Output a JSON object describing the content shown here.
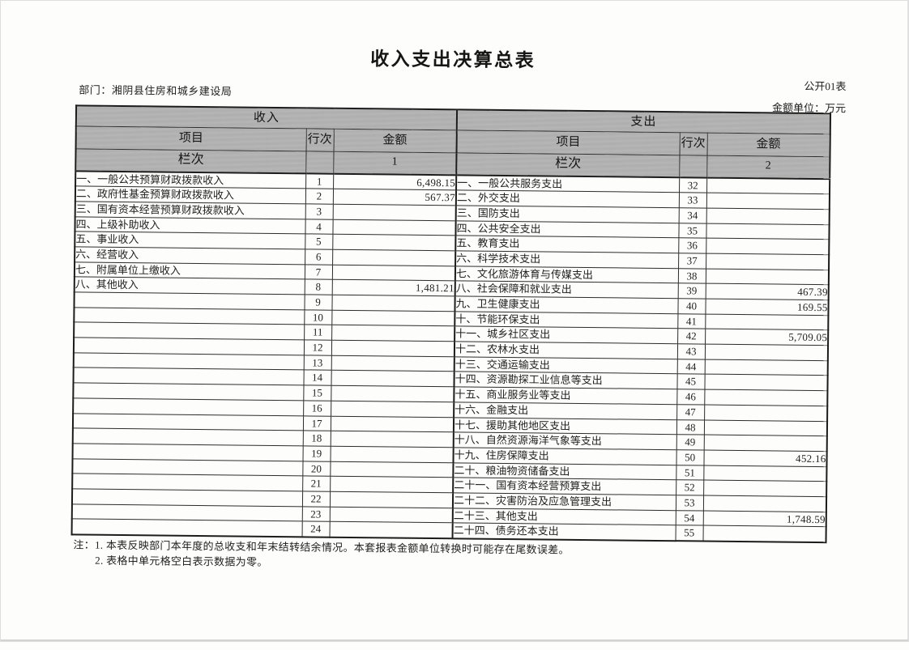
{
  "page": {
    "title": "收入支出决算总表",
    "department_label": "部门：湘阴县住房和城乡建设局",
    "form_code": "公开01表",
    "unit_label": "金额单位：万元"
  },
  "table": {
    "section_headers": {
      "income": "收入",
      "expenditure": "支出"
    },
    "column_headers": {
      "item": "项目",
      "row_no": "行次",
      "amount": "金额",
      "column_label": "栏次",
      "income_col_no": "1",
      "expenditure_col_no": "2"
    },
    "rows": [
      {
        "income": {
          "item": "一、一般公共预算财政拨款收入",
          "row_no": "1",
          "amount": "6,498.15"
        },
        "expenditure": {
          "item": "一、一般公共服务支出",
          "row_no": "32",
          "amount": ""
        }
      },
      {
        "income": {
          "item": "二、政府性基金预算财政拨款收入",
          "row_no": "2",
          "amount": "567.37"
        },
        "expenditure": {
          "item": "二、外交支出",
          "row_no": "33",
          "amount": ""
        }
      },
      {
        "income": {
          "item": "三、国有资本经营预算财政拨款收入",
          "row_no": "3",
          "amount": ""
        },
        "expenditure": {
          "item": "三、国防支出",
          "row_no": "34",
          "amount": ""
        }
      },
      {
        "income": {
          "item": "四、上级补助收入",
          "row_no": "4",
          "amount": ""
        },
        "expenditure": {
          "item": "四、公共安全支出",
          "row_no": "35",
          "amount": ""
        }
      },
      {
        "income": {
          "item": "五、事业收入",
          "row_no": "5",
          "amount": ""
        },
        "expenditure": {
          "item": "五、教育支出",
          "row_no": "36",
          "amount": ""
        }
      },
      {
        "income": {
          "item": "六、经营收入",
          "row_no": "6",
          "amount": ""
        },
        "expenditure": {
          "item": "六、科学技术支出",
          "row_no": "37",
          "amount": ""
        }
      },
      {
        "income": {
          "item": "七、附属单位上缴收入",
          "row_no": "7",
          "amount": ""
        },
        "expenditure": {
          "item": "七、文化旅游体育与传媒支出",
          "row_no": "38",
          "amount": ""
        }
      },
      {
        "income": {
          "item": "八、其他收入",
          "row_no": "8",
          "amount": "1,481.21"
        },
        "expenditure": {
          "item": "八、社会保障和就业支出",
          "row_no": "39",
          "amount": "467.39"
        }
      },
      {
        "income": {
          "item": "",
          "row_no": "9",
          "amount": ""
        },
        "expenditure": {
          "item": "九、卫生健康支出",
          "row_no": "40",
          "amount": "169.55"
        }
      },
      {
        "income": {
          "item": "",
          "row_no": "10",
          "amount": ""
        },
        "expenditure": {
          "item": "十、节能环保支出",
          "row_no": "41",
          "amount": ""
        }
      },
      {
        "income": {
          "item": "",
          "row_no": "11",
          "amount": ""
        },
        "expenditure": {
          "item": "十一、城乡社区支出",
          "row_no": "42",
          "amount": "5,709.05"
        }
      },
      {
        "income": {
          "item": "",
          "row_no": "12",
          "amount": ""
        },
        "expenditure": {
          "item": "十二、农林水支出",
          "row_no": "43",
          "amount": ""
        }
      },
      {
        "income": {
          "item": "",
          "row_no": "13",
          "amount": ""
        },
        "expenditure": {
          "item": "十三、交通运输支出",
          "row_no": "44",
          "amount": ""
        }
      },
      {
        "income": {
          "item": "",
          "row_no": "14",
          "amount": ""
        },
        "expenditure": {
          "item": "十四、资源勘探工业信息等支出",
          "row_no": "45",
          "amount": ""
        }
      },
      {
        "income": {
          "item": "",
          "row_no": "15",
          "amount": ""
        },
        "expenditure": {
          "item": "十五、商业服务业等支出",
          "row_no": "46",
          "amount": ""
        }
      },
      {
        "income": {
          "item": "",
          "row_no": "16",
          "amount": ""
        },
        "expenditure": {
          "item": "十六、金融支出",
          "row_no": "47",
          "amount": ""
        }
      },
      {
        "income": {
          "item": "",
          "row_no": "17",
          "amount": ""
        },
        "expenditure": {
          "item": "十七、援助其他地区支出",
          "row_no": "48",
          "amount": ""
        }
      },
      {
        "income": {
          "item": "",
          "row_no": "18",
          "amount": ""
        },
        "expenditure": {
          "item": "十八、自然资源海洋气象等支出",
          "row_no": "49",
          "amount": ""
        }
      },
      {
        "income": {
          "item": "",
          "row_no": "19",
          "amount": ""
        },
        "expenditure": {
          "item": "十九、住房保障支出",
          "row_no": "50",
          "amount": "452.16"
        }
      },
      {
        "income": {
          "item": "",
          "row_no": "20",
          "amount": ""
        },
        "expenditure": {
          "item": "二十、粮油物资储备支出",
          "row_no": "51",
          "amount": ""
        }
      },
      {
        "income": {
          "item": "",
          "row_no": "21",
          "amount": ""
        },
        "expenditure": {
          "item": "二十一、国有资本经营预算支出",
          "row_no": "52",
          "amount": ""
        }
      },
      {
        "income": {
          "item": "",
          "row_no": "22",
          "amount": ""
        },
        "expenditure": {
          "item": "二十二、灾害防治及应急管理支出",
          "row_no": "53",
          "amount": ""
        }
      },
      {
        "income": {
          "item": "",
          "row_no": "23",
          "amount": ""
        },
        "expenditure": {
          "item": "二十三、其他支出",
          "row_no": "54",
          "amount": "1,748.59"
        }
      },
      {
        "income": {
          "item": "",
          "row_no": "24",
          "amount": ""
        },
        "expenditure": {
          "item": "二十四、债务还本支出",
          "row_no": "55",
          "amount": ""
        }
      }
    ]
  },
  "notes": {
    "line1": "注：1. 本表反映部门本年度的总收支和年末结转结余情况。本套报表金额单位转换时可能存在尾数误差。",
    "line2": "2. 表格中单元格空白表示数据为零。"
  }
}
